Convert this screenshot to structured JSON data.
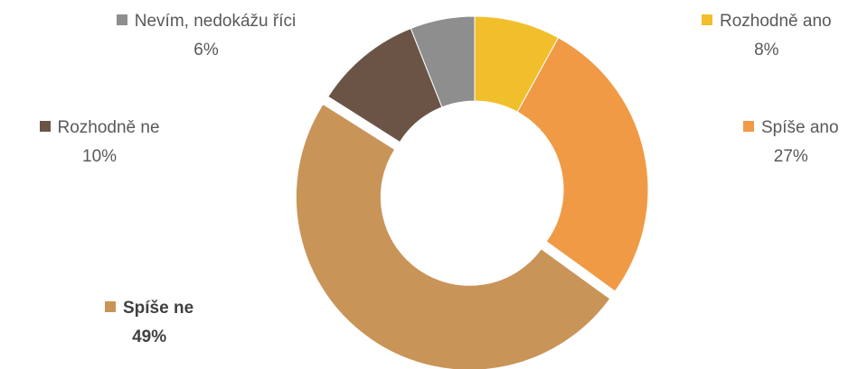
{
  "chart_data": {
    "type": "donut",
    "categories": [
      "Rozhodně ano",
      "Spíše ano",
      "Spíše ne",
      "Rozhodně ne",
      "Nevím, nedokážu říci"
    ],
    "values": [
      8,
      27,
      49,
      10,
      6
    ],
    "value_labels": [
      "8%",
      "27%",
      "49%",
      "10%",
      "6%"
    ],
    "colors": [
      "#f2bf2c",
      "#f09a45",
      "#c99458",
      "#6b5446",
      "#8e8e8e"
    ]
  }
}
